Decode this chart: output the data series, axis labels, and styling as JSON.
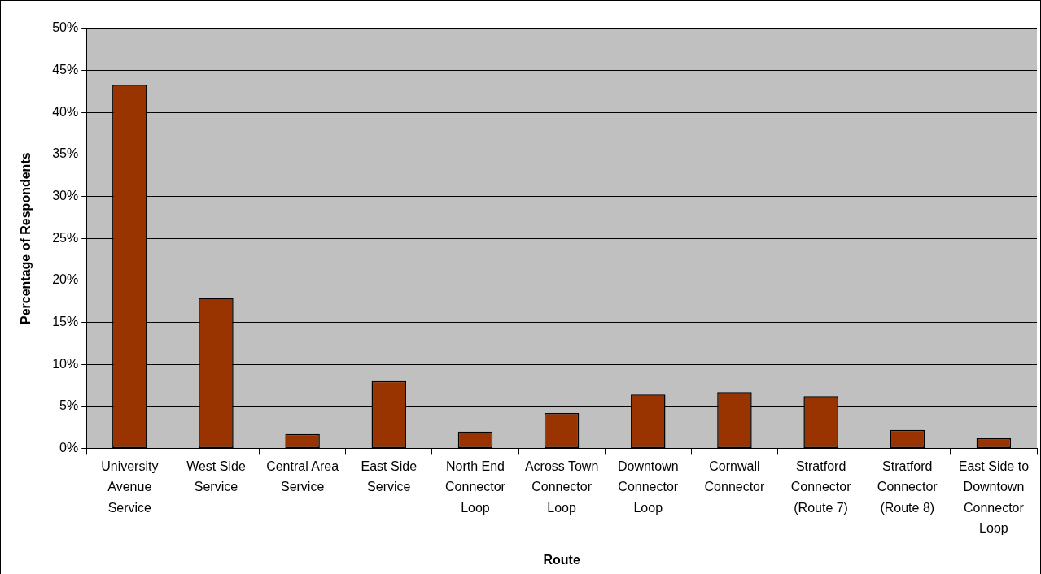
{
  "chart_data": {
    "type": "bar",
    "xlabel": "Route",
    "ylabel": "Percentage of Respondents",
    "categories": [
      "University Avenue Service",
      "West Side Service",
      "Central Area Service",
      "East Side Service",
      "North End Connector Loop",
      "Across Town Connector Loop",
      "Downtown Connector Loop",
      "Cornwall Connector",
      "Stratford Connector (Route 7)",
      "Stratford Connector (Route 8)",
      "East Side to Downtown Connector Loop"
    ],
    "values": [
      43.3,
      17.9,
      1.7,
      8.0,
      2.0,
      4.2,
      6.4,
      6.7,
      6.2,
      2.2,
      1.2
    ],
    "color": "#993300",
    "ylim": [
      0,
      50
    ],
    "yticks": [
      {
        "value": 0,
        "label": "0%"
      },
      {
        "value": 5,
        "label": "5%"
      },
      {
        "value": 10,
        "label": "10%"
      },
      {
        "value": 15,
        "label": "15%"
      },
      {
        "value": 20,
        "label": "20%"
      },
      {
        "value": 25,
        "label": "25%"
      },
      {
        "value": 30,
        "label": "30%"
      },
      {
        "value": 35,
        "label": "35%"
      },
      {
        "value": 40,
        "label": "40%"
      },
      {
        "value": 45,
        "label": "45%"
      },
      {
        "value": 50,
        "label": "50%"
      }
    ],
    "grid": "y",
    "legend": false
  }
}
